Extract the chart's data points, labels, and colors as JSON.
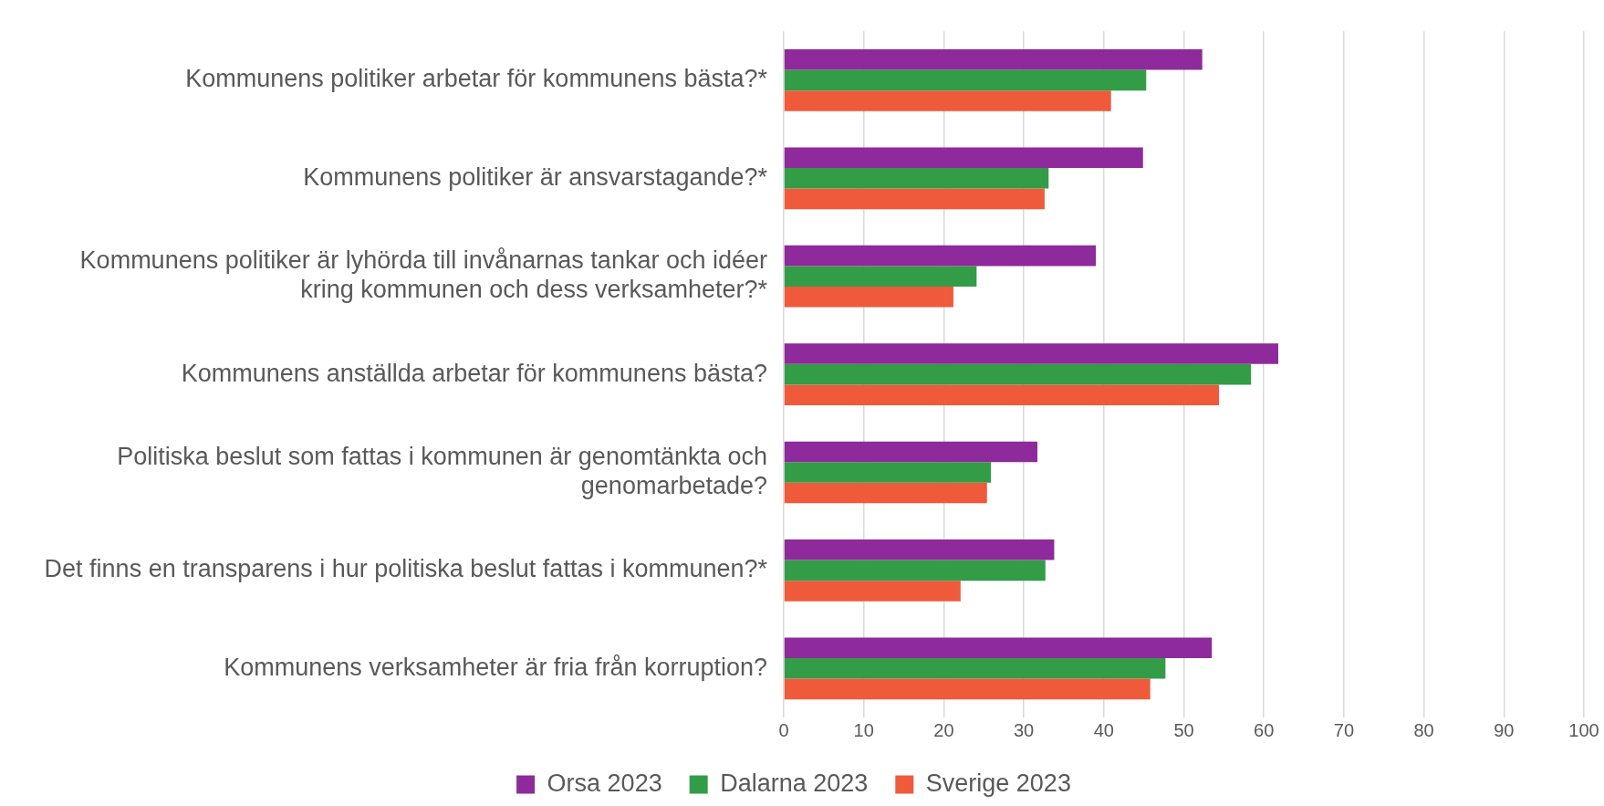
{
  "chart_data": {
    "type": "bar",
    "orientation": "horizontal",
    "categories": [
      "Kommunens politiker arbetar för kommunens bästa?*",
      "Kommunens politiker är ansvarstagande?*",
      "Kommunens politiker är lyhörda till invånarnas tankar och idéer kring kommunen och dess verksamheter?*",
      "Kommunens anställda arbetar för kommunens bästa?",
      "Politiska beslut som fattas i kommunen är genomtänkta och genomarbetade?",
      "Det finns en transparens i hur politiska beslut fattas i kommunen?*",
      "Kommunens verksamheter är fria från korruption?"
    ],
    "series": [
      {
        "name": "Orsa 2023",
        "color": "#8e2a9b",
        "values": [
          52.3,
          44.9,
          39.0,
          61.8,
          31.7,
          33.8,
          53.5
        ]
      },
      {
        "name": "Dalarna 2023",
        "color": "#339c47",
        "values": [
          45.3,
          33.1,
          24.1,
          58.4,
          25.9,
          32.7,
          47.7
        ]
      },
      {
        "name": "Sverige 2023",
        "color": "#ee5a3a",
        "values": [
          40.9,
          32.6,
          21.2,
          54.4,
          25.4,
          22.1,
          45.8
        ]
      }
    ],
    "xlim": [
      0,
      100
    ],
    "xticks": [
      0,
      10,
      20,
      30,
      40,
      50,
      60,
      70,
      80,
      90,
      100
    ],
    "grid": "x",
    "legend": "bottom"
  }
}
